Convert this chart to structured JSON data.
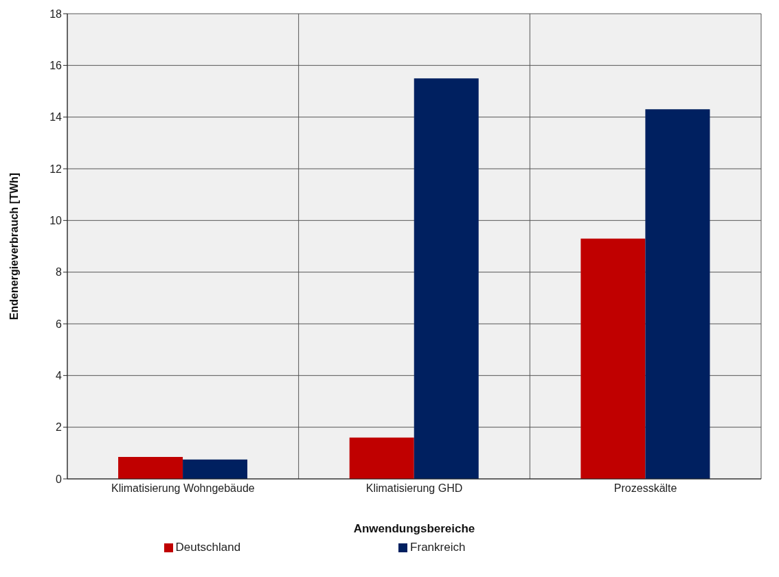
{
  "chart_data": {
    "type": "bar",
    "xlabel": "Anwendungsbereiche",
    "ylabel": "Endenergieverbrauch  [TWh]",
    "categories": [
      "Klimatisierung Wohngebäude",
      "Klimatisierung GHD",
      "Prozesskälte"
    ],
    "series": [
      {
        "name": "Deutschland",
        "color": "#c00000",
        "values": [
          0.85,
          1.6,
          9.3
        ]
      },
      {
        "name": "Frankreich",
        "color": "#002060",
        "values": [
          0.75,
          15.5,
          14.3
        ]
      }
    ],
    "ylim": [
      0,
      18
    ],
    "yticks": [
      0,
      2,
      4,
      6,
      8,
      10,
      12,
      14,
      16,
      18
    ],
    "grid": true,
    "legend": "bottom"
  }
}
